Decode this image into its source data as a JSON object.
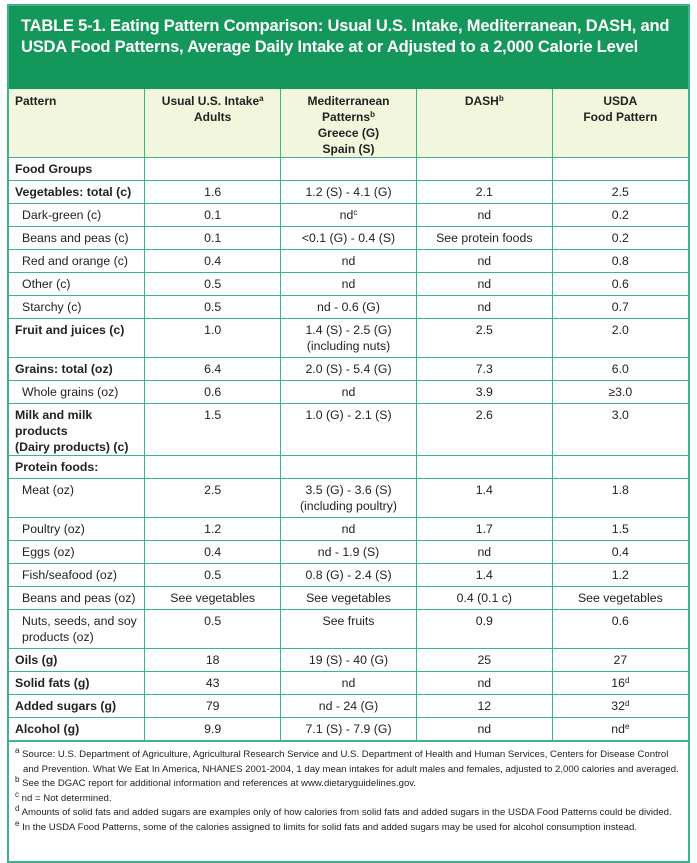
{
  "title": "TABLE 5-1. Eating Pattern Comparison: Usual U.S. Intake, Mediterranean, DASH, and USDA Food Patterns, Average Daily Intake at or Adjusted to a 2,000 Calorie Level",
  "colors": {
    "title_bg": "#14975a",
    "border": "#3fb38a",
    "header_bg": "#f2f6dc"
  },
  "headers": [
    {
      "lines": [
        "Pattern"
      ],
      "sup": ""
    },
    {
      "lines": [
        "Usual U.S. Intake",
        "Adults"
      ],
      "sup": "a"
    },
    {
      "lines": [
        "Mediterranean Patterns",
        "Greece (G)",
        "Spain (S)"
      ],
      "sup": "b"
    },
    {
      "lines": [
        "DASH"
      ],
      "sup": "b"
    },
    {
      "lines": [
        "USDA",
        "Food Pattern"
      ],
      "sup": ""
    }
  ],
  "rows": [
    {
      "label": "Food Groups",
      "bold": true,
      "cells": [
        {
          "t": ""
        },
        {
          "t": ""
        },
        {
          "t": ""
        },
        {
          "t": ""
        }
      ]
    },
    {
      "label": "Vegetables: total (c)",
      "bold": true,
      "cells": [
        {
          "t": "1.6"
        },
        {
          "t": "1.2 (S) - 4.1 (G)"
        },
        {
          "t": "2.1"
        },
        {
          "t": "2.5"
        }
      ]
    },
    {
      "label": "Dark-green (c)",
      "indent": true,
      "cells": [
        {
          "t": "0.1"
        },
        {
          "t": "nd",
          "sup": "c"
        },
        {
          "t": "nd"
        },
        {
          "t": "0.2"
        }
      ]
    },
    {
      "label": "Beans and peas (c)",
      "indent": true,
      "cells": [
        {
          "t": "0.1"
        },
        {
          "t": "<0.1 (G) - 0.4 (S)"
        },
        {
          "t": "See protein foods"
        },
        {
          "t": "0.2"
        }
      ]
    },
    {
      "label": "Red and orange (c)",
      "indent": true,
      "cells": [
        {
          "t": "0.4"
        },
        {
          "t": "nd"
        },
        {
          "t": "nd"
        },
        {
          "t": "0.8"
        }
      ]
    },
    {
      "label": "Other (c)",
      "indent": true,
      "cells": [
        {
          "t": "0.5"
        },
        {
          "t": "nd"
        },
        {
          "t": "nd"
        },
        {
          "t": "0.6"
        }
      ]
    },
    {
      "label": "Starchy (c)",
      "indent": true,
      "cells": [
        {
          "t": "0.5"
        },
        {
          "t": "nd - 0.6 (G)"
        },
        {
          "t": "nd"
        },
        {
          "t": "0.7"
        }
      ]
    },
    {
      "label": "Fruit and juices (c)",
      "bold": true,
      "tall": true,
      "cells": [
        {
          "t": "1.0"
        },
        {
          "t": "1.4 (S) - 2.5 (G)",
          "t2": "(including nuts)"
        },
        {
          "t": "2.5"
        },
        {
          "t": "2.0"
        }
      ]
    },
    {
      "label": "Grains: total (oz)",
      "bold": true,
      "cells": [
        {
          "t": "6.4"
        },
        {
          "t": "2.0 (S) - 5.4 (G)"
        },
        {
          "t": "7.3"
        },
        {
          "t": "6.0"
        }
      ]
    },
    {
      "label": "Whole grains (oz)",
      "indent": true,
      "cells": [
        {
          "t": "0.6"
        },
        {
          "t": "nd"
        },
        {
          "t": "3.9"
        },
        {
          "t": "≥3.0"
        }
      ]
    },
    {
      "label": "Milk and milk products",
      "label2": "(Dairy products) (c)",
      "bold": true,
      "tall": true,
      "cells": [
        {
          "t": "1.5"
        },
        {
          "t": "1.0 (G) - 2.1 (S)"
        },
        {
          "t": "2.6"
        },
        {
          "t": "3.0"
        }
      ]
    },
    {
      "label": "Protein foods:",
      "bold": true,
      "cells": [
        {
          "t": ""
        },
        {
          "t": ""
        },
        {
          "t": ""
        },
        {
          "t": ""
        }
      ]
    },
    {
      "label": "Meat (oz)",
      "indent": true,
      "tall": true,
      "cells": [
        {
          "t": "2.5"
        },
        {
          "t": "3.5 (G) - 3.6 (S)",
          "t2": "(including poultry)"
        },
        {
          "t": "1.4"
        },
        {
          "t": "1.8"
        }
      ]
    },
    {
      "label": "Poultry (oz)",
      "indent": true,
      "cells": [
        {
          "t": "1.2"
        },
        {
          "t": "nd"
        },
        {
          "t": "1.7"
        },
        {
          "t": "1.5"
        }
      ]
    },
    {
      "label": "Eggs (oz)",
      "indent": true,
      "cells": [
        {
          "t": "0.4"
        },
        {
          "t": "nd - 1.9 (S)"
        },
        {
          "t": "nd"
        },
        {
          "t": "0.4"
        }
      ]
    },
    {
      "label": "Fish/seafood (oz)",
      "indent": true,
      "cells": [
        {
          "t": "0.5"
        },
        {
          "t": "0.8 (G) - 2.4 (S)"
        },
        {
          "t": "1.4"
        },
        {
          "t": "1.2"
        }
      ]
    },
    {
      "label": "Beans and peas (oz)",
      "indent": true,
      "cells": [
        {
          "t": "See vegetables"
        },
        {
          "t": "See vegetables"
        },
        {
          "t": "0.4 (0.1 c)"
        },
        {
          "t": "See vegetables"
        }
      ]
    },
    {
      "label": "Nuts, seeds, and soy",
      "label2": "products (oz)",
      "indent": true,
      "tall": true,
      "cells": [
        {
          "t": "0.5"
        },
        {
          "t": "See fruits"
        },
        {
          "t": "0.9"
        },
        {
          "t": "0.6"
        }
      ]
    },
    {
      "label": "Oils (g)",
      "bold": true,
      "cells": [
        {
          "t": "18"
        },
        {
          "t": "19 (S) - 40 (G)"
        },
        {
          "t": "25"
        },
        {
          "t": "27"
        }
      ]
    },
    {
      "label": "Solid fats (g)",
      "bold": true,
      "cells": [
        {
          "t": "43"
        },
        {
          "t": "nd"
        },
        {
          "t": "nd"
        },
        {
          "t": "16",
          "sup": "d"
        }
      ]
    },
    {
      "label": "Added sugars (g)",
      "bold": true,
      "cells": [
        {
          "t": "79"
        },
        {
          "t": "nd - 24 (G)"
        },
        {
          "t": "12"
        },
        {
          "t": "32",
          "sup": "d"
        }
      ]
    },
    {
      "label": "Alcohol (g)",
      "bold": true,
      "cells": [
        {
          "t": "9.9"
        },
        {
          "t": "7.1 (S) - 7.9 (G)"
        },
        {
          "t": "nd"
        },
        {
          "t": "nd",
          "sup": "e"
        }
      ]
    }
  ],
  "footnotes": [
    {
      "mark": "a",
      "text": "Source: U.S. Department of Agriculture, Agricultural Research Service and U.S. Department of Health and Human Services, Centers for Disease Control and Prevention. What We Eat In America, NHANES 2001-2004, 1 day mean intakes for adult males and females, adjusted to 2,000 calories and averaged."
    },
    {
      "mark": "b",
      "text": "See the DGAC report for additional information and references at www.dietaryguidelines.gov."
    },
    {
      "mark": "c",
      "text": "nd = Not determined."
    },
    {
      "mark": "d",
      "text": "Amounts of solid fats and added sugars are examples only of how calories from solid fats and added sugars in the USDA Food Patterns could be divided."
    },
    {
      "mark": "e",
      "text": "In the USDA Food Patterns, some of the calories assigned to limits for solid fats and added sugars may be used for alcohol consumption instead."
    }
  ]
}
